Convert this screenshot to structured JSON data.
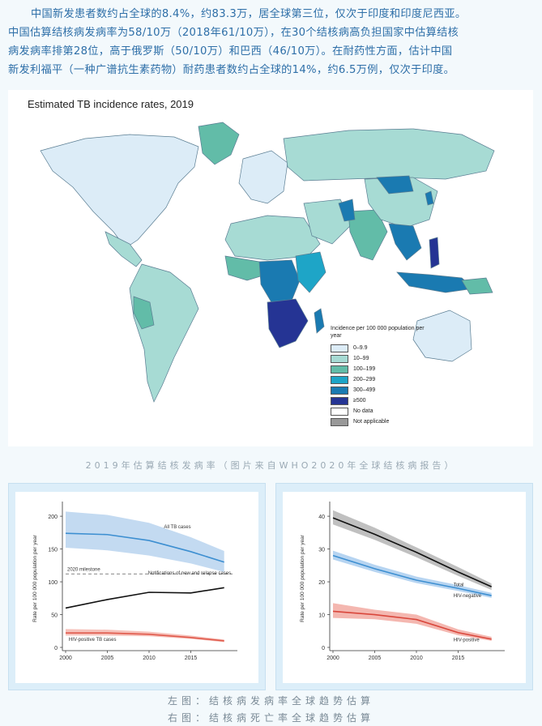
{
  "paragraph": {
    "line1": "中国新发患者数约占全球的8.4%，约83.3万，居全球第三位，仅次于印度和印度尼西亚。",
    "line2": "中国估算结核病发病率为58/10万（2018年61/10万），在30个结核病高负担国家中估算结核",
    "line3": "病发病率排第28位，高于俄罗斯（50/10万）和巴西（46/10万）。在耐药性方面，估计中国",
    "line4": "新发利福平（一种广谱抗生素药物）耐药患者数约占全球的14%，约6.5万例，仅次于印度。"
  },
  "map": {
    "title": "Estimated TB incidence rates, 2019",
    "legend_title": "Incidence per 100 000 population per year",
    "legend": [
      {
        "label": "0–9.9",
        "color": "#dcecf7"
      },
      {
        "label": "10–99",
        "color": "#a7dbd4"
      },
      {
        "label": "100–199",
        "color": "#62bca8"
      },
      {
        "label": "200–299",
        "color": "#1ea5c7"
      },
      {
        "label": "300–499",
        "color": "#1a7ab1"
      },
      {
        "label": "≥500",
        "color": "#253494"
      },
      {
        "label": "No data",
        "color": "#ffffff"
      },
      {
        "label": "Not applicable",
        "color": "#999999"
      }
    ]
  },
  "caption": "2019年估算结核发病率（图片来自WHO2020年全球结核病报告）",
  "chart_data": [
    {
      "type": "line",
      "ylabel": "Rate per 100 000 population per year",
      "x": [
        2000,
        2005,
        2010,
        2015,
        2019
      ],
      "xticks": [
        "2000",
        "2005",
        "2010",
        "2015"
      ],
      "yticks": [
        "0",
        "50",
        "100",
        "150",
        "200"
      ],
      "ylim": [
        0,
        210
      ],
      "milestone": {
        "label": "2020 milestone",
        "value": 112
      },
      "series": [
        {
          "name": "All TB cases",
          "values": [
            174,
            172,
            163,
            146,
            130
          ],
          "band_low": [
            152,
            148,
            140,
            128,
            115
          ],
          "band_high": [
            207,
            202,
            190,
            168,
            147
          ],
          "color": "#3d8fd1",
          "band": "#b9d3ee"
        },
        {
          "name": "Notifications of new and relapse cases",
          "values": [
            60,
            73,
            84,
            83,
            91
          ],
          "color": "#111111"
        },
        {
          "name": "HIV-positive TB cases",
          "values": [
            22,
            22,
            20,
            15,
            10
          ],
          "band_low": [
            18,
            18,
            17,
            13,
            8
          ],
          "band_high": [
            28,
            27,
            24,
            18,
            12
          ],
          "color": "#e05a4c",
          "band": "#f4b6ae"
        }
      ]
    },
    {
      "type": "line",
      "ylabel": "Rate per 100 000 population per year",
      "x": [
        2000,
        2005,
        2010,
        2015,
        2019
      ],
      "xticks": [
        "2000",
        "2005",
        "2010",
        "2015"
      ],
      "yticks": [
        "0",
        "10",
        "20",
        "30",
        "40"
      ],
      "ylim": [
        0,
        42
      ],
      "series": [
        {
          "name": "Total",
          "values": [
            39.5,
            34.5,
            29,
            23,
            18.5
          ],
          "band_low": [
            37.5,
            32.8,
            27.5,
            21.8,
            17.5
          ],
          "band_high": [
            41.8,
            36.5,
            30.5,
            24.5,
            19.5
          ],
          "color": "#111111",
          "band": "#b5b5b5"
        },
        {
          "name": "HIV-negative",
          "values": [
            28,
            24,
            20.5,
            18,
            15.8
          ],
          "band_low": [
            26.8,
            23,
            19.6,
            17.2,
            15.1
          ],
          "band_high": [
            29.5,
            25.2,
            21.6,
            19,
            16.6
          ],
          "color": "#3d8fd1",
          "band": "#a9cdee"
        },
        {
          "name": "HIV-positive",
          "values": [
            11,
            10,
            8.5,
            4.5,
            2.5
          ],
          "band_low": [
            9,
            8.6,
            7.2,
            3.7,
            2
          ],
          "band_high": [
            13.5,
            11.5,
            10,
            5.5,
            3.2
          ],
          "color": "#d9473c",
          "band": "#f2aaa2"
        }
      ]
    }
  ],
  "bottom_captions": {
    "left": "左图：结核病发病率全球趋势估算",
    "right": "右图：结核病死亡率全球趋势估算"
  }
}
